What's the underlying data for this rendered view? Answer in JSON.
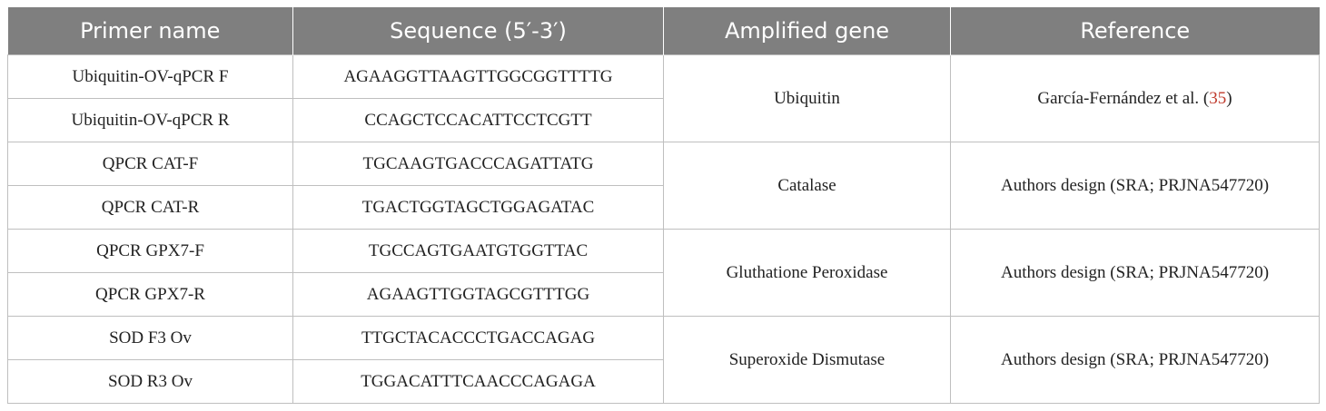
{
  "table": {
    "headers": [
      "Primer name",
      "Sequence (5′-3′)",
      "Amplified gene",
      "Reference"
    ],
    "groups": [
      {
        "gene": "Ubiquitin",
        "reference_text": "García-Fernández et al. (",
        "reference_num": "35",
        "reference_close": ")",
        "primers": [
          {
            "name": "Ubiquitin-OV-qPCR F",
            "sequence": "AGAAGGTTAAGTTGGCGGTTTTG"
          },
          {
            "name": "Ubiquitin-OV-qPCR R",
            "sequence": "CCAGCTCCACATTCCTCGTT"
          }
        ]
      },
      {
        "gene": "Catalase",
        "reference_text": "Authors design (SRA; PRJNA547720)",
        "primers": [
          {
            "name": "QPCR CAT-F",
            "sequence": "TGCAAGTGACCCAGATTATG"
          },
          {
            "name": "QPCR CAT-R",
            "sequence": "TGACTGGTAGCTGGAGATAC"
          }
        ]
      },
      {
        "gene": "Gluthatione Peroxidase",
        "reference_text": "Authors design (SRA; PRJNA547720)",
        "primers": [
          {
            "name": "QPCR GPX7-F",
            "sequence": "TGCCAGTGAATGTGGTTAC"
          },
          {
            "name": "QPCR GPX7-R",
            "sequence": "AGAAGTTGGTAGCGTTTGG"
          }
        ]
      },
      {
        "gene": "Superoxide Dismutase",
        "reference_text": "Authors design (SRA; PRJNA547720)",
        "primers": [
          {
            "name": "SOD F3 Ov",
            "sequence": "TTGCTACACCCTGACCAGAG"
          },
          {
            "name": "SOD R3 Ov",
            "sequence": "TGGACATTTCAACCCAGAGA"
          }
        ]
      }
    ]
  },
  "colors": {
    "header_bg": "#7f7f7f",
    "header_text": "#ffffff",
    "border": "#bfbfbf",
    "reference_link": "#c0392b"
  }
}
